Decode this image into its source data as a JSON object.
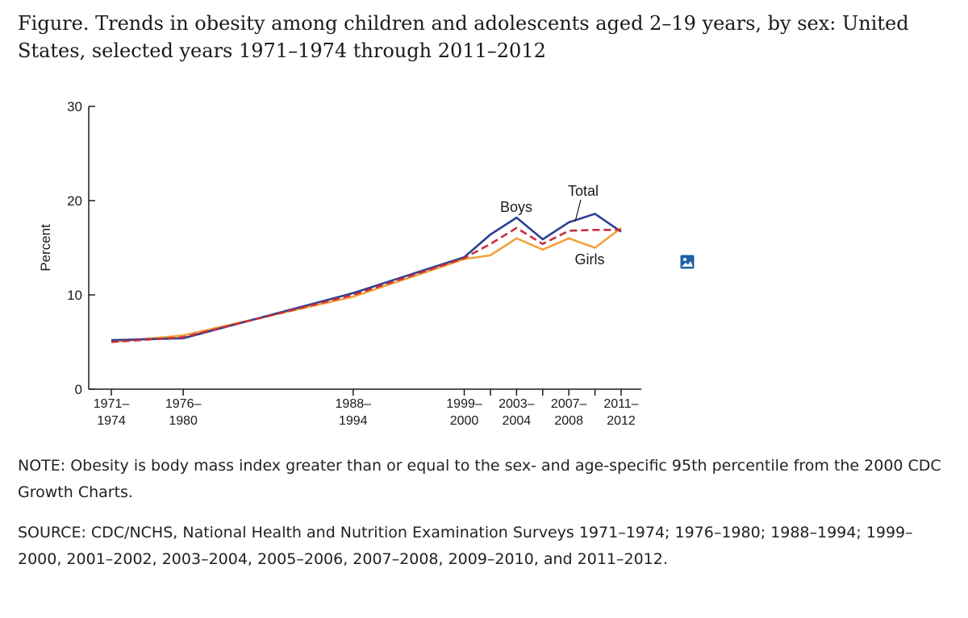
{
  "figure": {
    "title": "Figure. Trends in obesity among children and adolescents aged 2–19 years, by sex: United States, selected years 1971–1974 through 2011–2012",
    "note": "NOTE: Obesity is body mass index greater than or equal to the sex- and age-specific 95th percentile from the 2000 CDC Growth Charts.",
    "source": "SOURCE: CDC/NCHS, National Health and Nutrition Examination Surveys 1971–1974; 1976–1980; 1988–1994; 1999–2000, 2001–2002, 2003–2004, 2005–2006, 2007–2008, 2009–2010, and 2011–2012.",
    "image_icon": "image-icon"
  },
  "chart_data": {
    "type": "line",
    "title": "",
    "xlabel": "",
    "ylabel": "Percent",
    "ylim": [
      0,
      30
    ],
    "yticks": [
      0,
      10,
      20,
      30
    ],
    "grid": false,
    "x": [
      "1971–1974",
      "1976–1980",
      "1988–1994",
      "1999–2000",
      "2001–2002",
      "2003–2004",
      "2005–2006",
      "2007–2008",
      "2009–2010",
      "2011–2012"
    ],
    "x_mid_years": [
      1972.5,
      1978,
      1991,
      1999.5,
      2001.5,
      2003.5,
      2005.5,
      2007.5,
      2009.5,
      2011.5
    ],
    "x_tick_labels": [
      {
        "line1": "1971–",
        "line2": "1974",
        "index": 0
      },
      {
        "line1": "1976–",
        "line2": "1980",
        "index": 1
      },
      {
        "line1": "1988–",
        "line2": "1994",
        "index": 2
      },
      {
        "line1": "1999–",
        "line2": "2000",
        "index": 3
      },
      {
        "line1": "2003–",
        "line2": "2004",
        "index": 5
      },
      {
        "line1": "2007–",
        "line2": "2008",
        "index": 7
      },
      {
        "line1": "2011–",
        "line2": "2012",
        "index": 9
      }
    ],
    "series": [
      {
        "name": "Total",
        "color": "#c62f3f",
        "dashed": true,
        "values": [
          5.0,
          5.5,
          10.0,
          13.9,
          15.4,
          17.1,
          15.4,
          16.8,
          16.9,
          16.9
        ]
      },
      {
        "name": "Boys",
        "color": "#2e3f92",
        "dashed": false,
        "values": [
          5.2,
          5.4,
          10.2,
          14.0,
          16.4,
          18.2,
          15.9,
          17.7,
          18.6,
          16.7
        ]
      },
      {
        "name": "Girls",
        "color": "#f4a13b",
        "dashed": false,
        "values": [
          5.0,
          5.7,
          9.8,
          13.8,
          14.2,
          16.0,
          14.8,
          16.0,
          15.0,
          17.1
        ]
      }
    ]
  }
}
